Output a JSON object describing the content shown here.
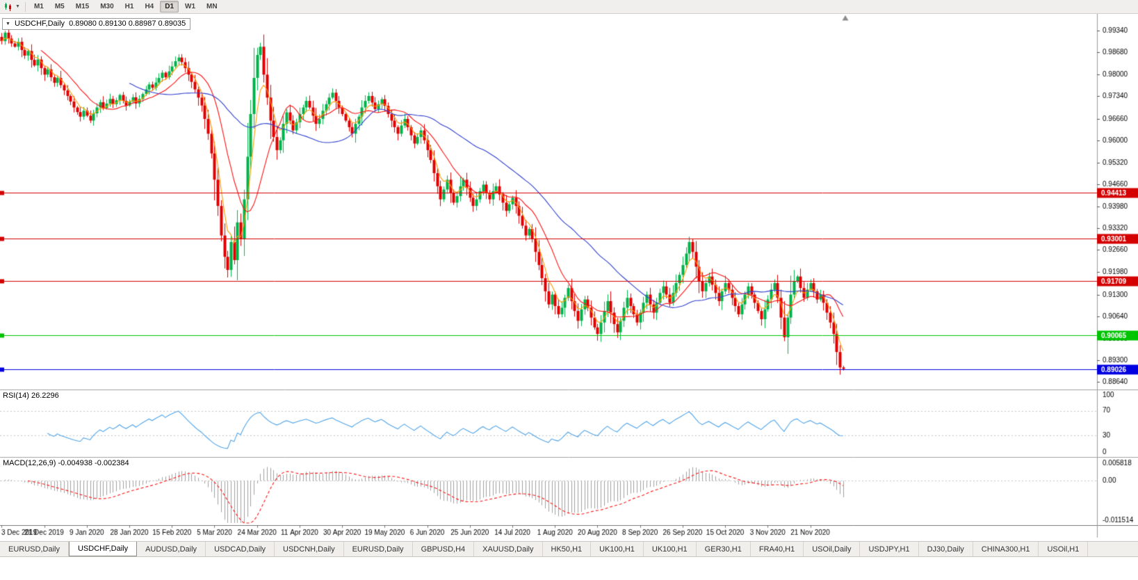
{
  "window": {
    "toolbar": {
      "timeframes": [
        "M1",
        "M5",
        "M15",
        "M30",
        "H1",
        "H4",
        "D1",
        "W1",
        "MN"
      ],
      "active_timeframe": "D1"
    },
    "tabs": {
      "items": [
        "EURUSD,Daily",
        "USDCHF,Daily",
        "AUDUSD,Daily",
        "USDCAD,Daily",
        "USDCNH,Daily",
        "EURUSD,Daily",
        "GBPUSD,H4",
        "XAUUSD,Daily",
        "HK50,H1",
        "UK100,H1",
        "UK100,H1",
        "GER30,H1",
        "FRA40,H1",
        "USOil,Daily",
        "USDJPY,H1",
        "DJ30,Daily",
        "CHINA300,H1",
        "USOil,H1"
      ],
      "active_index": 1,
      "active": "USDCHF,Daily"
    }
  },
  "chart_data": {
    "type": "candlestick",
    "title": "USDCHF,Daily",
    "ohlc_text": "0.89080 0.89130 0.88987 0.89035",
    "open": 0.8908,
    "high": 0.8913,
    "low": 0.88987,
    "close": 0.89035,
    "price_axis": [
      0.9934,
      0.9868,
      0.98,
      0.9734,
      0.9666,
      0.96,
      0.9532,
      0.9466,
      0.9398,
      0.9332,
      0.9266,
      0.9198,
      0.913,
      0.9064,
      0.8996,
      0.893,
      0.8864
    ],
    "price_range": [
      0.8841,
      0.9985
    ],
    "date_axis": [
      "3 Dec 2019",
      "21 Dec 2019",
      "9 Jan 2020",
      "28 Jan 2020",
      "15 Feb 2020",
      "5 Mar 2020",
      "24 Mar 2020",
      "11 Apr 2020",
      "30 Apr 2020",
      "19 May 2020",
      "6 Jun 2020",
      "25 Jun 2020",
      "14 Jul 2020",
      "1 Aug 2020",
      "20 Aug 2020",
      "8 Sep 2020",
      "26 Sep 2020",
      "15 Oct 2020",
      "3 Nov 2020",
      "21 Nov 2020"
    ],
    "bars_per_date_tick": 13,
    "first_open": 0.9915,
    "closes": [
      0.9902,
      0.9928,
      0.991,
      0.9895,
      0.9885,
      0.99,
      0.9875,
      0.9858,
      0.9872,
      0.9845,
      0.9828,
      0.9846,
      0.982,
      0.98,
      0.9816,
      0.9792,
      0.9775,
      0.979,
      0.9768,
      0.9752,
      0.9735,
      0.9718,
      0.97,
      0.9686,
      0.9672,
      0.969,
      0.9675,
      0.966,
      0.9682,
      0.97,
      0.9716,
      0.9698,
      0.9712,
      0.9726,
      0.971,
      0.9722,
      0.9738,
      0.972,
      0.9706,
      0.9718,
      0.9731,
      0.9712,
      0.9726,
      0.9741,
      0.9755,
      0.977,
      0.976,
      0.9776,
      0.979,
      0.9806,
      0.9792,
      0.981,
      0.9825,
      0.9841,
      0.9852,
      0.9838,
      0.982,
      0.98,
      0.9778,
      0.9755,
      0.973,
      0.9706,
      0.9665,
      0.962,
      0.956,
      0.948,
      0.94,
      0.931,
      0.9245,
      0.9205,
      0.929,
      0.9235,
      0.935,
      0.93,
      0.942,
      0.955,
      0.968,
      0.979,
      0.986,
      0.9885,
      0.98,
      0.973,
      0.966,
      0.961,
      0.957,
      0.96,
      0.965,
      0.9685,
      0.966,
      0.963,
      0.9655,
      0.968,
      0.97,
      0.972,
      0.97,
      0.9675,
      0.965,
      0.9665,
      0.969,
      0.971,
      0.973,
      0.9745,
      0.972,
      0.97,
      0.968,
      0.966,
      0.964,
      0.962,
      0.965,
      0.9672,
      0.97,
      0.972,
      0.9735,
      0.9715,
      0.9695,
      0.971,
      0.9725,
      0.9705,
      0.968,
      0.966,
      0.964,
      0.962,
      0.9645,
      0.9665,
      0.964,
      0.9615,
      0.959,
      0.961,
      0.963,
      0.96,
      0.957,
      0.954,
      0.95,
      0.946,
      0.942,
      0.945,
      0.948,
      0.944,
      0.941,
      0.943,
      0.946,
      0.948,
      0.9455,
      0.9425,
      0.94,
      0.942,
      0.9445,
      0.9465,
      0.944,
      0.942,
      0.9445,
      0.946,
      0.9435,
      0.941,
      0.9385,
      0.9405,
      0.9425,
      0.94,
      0.937,
      0.934,
      0.931,
      0.933,
      0.93,
      0.926,
      0.922,
      0.918,
      0.914,
      0.91,
      0.913,
      0.9095,
      0.907,
      0.909,
      0.912,
      0.915,
      0.911,
      0.908,
      0.905,
      0.9085,
      0.9115,
      0.909,
      0.906,
      0.903,
      0.901,
      0.9045,
      0.908,
      0.911,
      0.9075,
      0.904,
      0.9015,
      0.905,
      0.909,
      0.912,
      0.9095,
      0.907,
      0.9045,
      0.9075,
      0.9105,
      0.913,
      0.91,
      0.9075,
      0.9105,
      0.9135,
      0.9155,
      0.913,
      0.9105,
      0.9135,
      0.9165,
      0.919,
      0.922,
      0.9255,
      0.929,
      0.926,
      0.9215,
      0.917,
      0.914,
      0.9165,
      0.9185,
      0.916,
      0.9135,
      0.911,
      0.914,
      0.9165,
      0.9145,
      0.912,
      0.9095,
      0.907,
      0.91,
      0.913,
      0.9155,
      0.913,
      0.9105,
      0.908,
      0.9055,
      0.9085,
      0.9115,
      0.9145,
      0.9165,
      0.912,
      0.906,
      0.9,
      0.906,
      0.913,
      0.917,
      0.9185,
      0.915,
      0.912,
      0.9145,
      0.9165,
      0.914,
      0.9115,
      0.913,
      0.9105,
      0.9075,
      0.9045,
      0.901,
      0.8955,
      0.8908,
      0.89035
    ],
    "candle_overrides": [
      {
        "i": 1,
        "h": 0.9934
      },
      {
        "i": 69,
        "l": 0.9182
      },
      {
        "i": 79,
        "h": 0.9897
      },
      {
        "i": 188,
        "l": 0.8998
      },
      {
        "i": 239,
        "l": 0.8988
      },
      {
        "i": 256,
        "l": 0.8886
      },
      {
        "i": 257,
        "o": 0.8908,
        "h": 0.8913,
        "l": 0.88987,
        "c": 0.89035
      }
    ],
    "horizontal_lines": [
      {
        "price": 0.94413,
        "label": "0.94413",
        "color": "#d40000"
      },
      {
        "price": 0.93001,
        "label": "0.93001",
        "color": "#d40000"
      },
      {
        "price": 0.91709,
        "label": "0.91709",
        "color": "#d40000"
      },
      {
        "price": 0.90065,
        "label": "0.90065",
        "color": "#00c400"
      },
      {
        "price": 0.89026,
        "label": "0.89026",
        "color": "#0000e0"
      }
    ],
    "moving_averages": [
      {
        "period": 5,
        "method": "ema",
        "color": "#ff9900"
      },
      {
        "period": 13,
        "method": "sma",
        "color": "#ff1010"
      },
      {
        "period": 40,
        "method": "sma",
        "color": "#2f3fd0"
      }
    ],
    "colors": {
      "up": "#00b44a",
      "down": "#e00000",
      "background": "#ffffff",
      "axis_text": "#000000"
    }
  },
  "rsi": {
    "label": "RSI(14) 26.2296",
    "period": 14,
    "value": 26.2296,
    "levels": [
      70,
      30
    ],
    "axis": [
      100,
      70,
      30,
      0
    ],
    "range": [
      0,
      100
    ],
    "line_color": "#4ea3e8"
  },
  "macd": {
    "label": "MACD(12,26,9) -0.004938 -0.002384",
    "fast": 12,
    "slow": 26,
    "signal": 9,
    "macd_value": -0.004938,
    "signal_value": -0.002384,
    "scale_max": 0.005818,
    "scale_min": -0.011514,
    "axis_labels": [
      "0.005818",
      "0.00",
      "-0.011514"
    ],
    "histogram_color": "#a0a0a0",
    "signal_color": "#ff1010"
  }
}
